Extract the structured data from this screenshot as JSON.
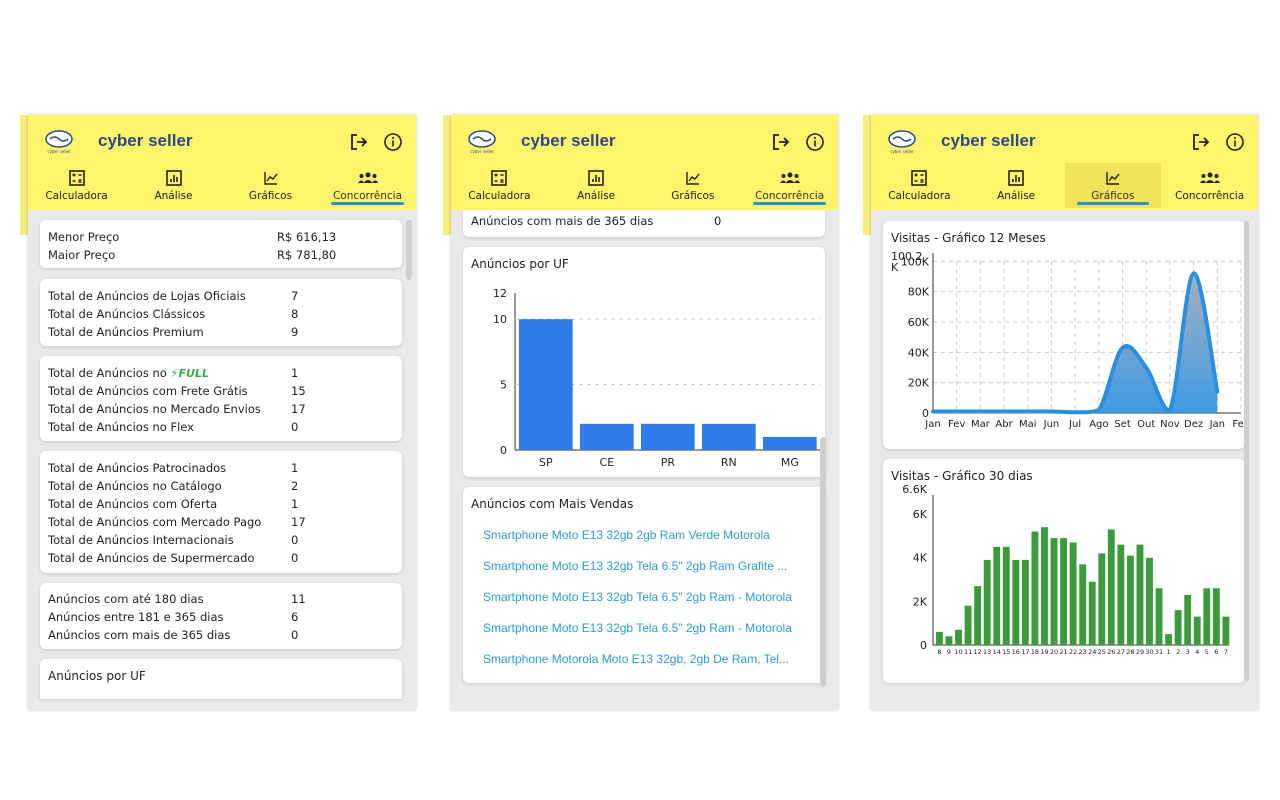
{
  "brand": {
    "name": "cyber seller",
    "logo_text": "cyber seller"
  },
  "tabs": [
    {
      "label": "Calculadora",
      "icon": "calculator-icon"
    },
    {
      "label": "Análise",
      "icon": "analysis-icon"
    },
    {
      "label": "Gráficos",
      "icon": "chart-line-icon"
    },
    {
      "label": "Concorrência",
      "icon": "competitors-icon"
    }
  ],
  "panel1": {
    "prices": [
      {
        "label": "Menor Preço",
        "value": "R$ 616,13"
      },
      {
        "label": "Maior Preço",
        "value": "R$ 781,80"
      }
    ],
    "stores": [
      {
        "label": "Total de Anúncios de Lojas Oficiais",
        "value": "7"
      },
      {
        "label": "Total de Anúncios Clássicos",
        "value": "8"
      },
      {
        "label": "Total de Anúncios Premium",
        "value": "9"
      }
    ],
    "shipping": [
      {
        "label": "Total de Anúncios no",
        "badge": "FULL",
        "value": "1"
      },
      {
        "label": "Total de Anúncios com Frete Grátis",
        "value": "15"
      },
      {
        "label": "Total de Anúncios no Mercado Envios",
        "value": "17"
      },
      {
        "label": "Total de Anúncios no Flex",
        "value": "0"
      }
    ],
    "types": [
      {
        "label": "Total de Anúncios Patrocinados",
        "value": "1"
      },
      {
        "label": "Total de Anúncios no Catálogo",
        "value": "2"
      },
      {
        "label": "Total de Anúncios com Oferta",
        "value": "1"
      },
      {
        "label": "Total de Anúncios com Mercado Pago",
        "value": "17"
      },
      {
        "label": "Total de Anúncios Internacionais",
        "value": "0"
      },
      {
        "label": "Total de Anúncios de Supermercado",
        "value": "0"
      }
    ],
    "age": [
      {
        "label": "Anúncios com até 180 dias",
        "value": "11"
      },
      {
        "label": "Anúncios entre 181 e 365 dias",
        "value": "6"
      },
      {
        "label": "Anúncios com mais de 365 dias",
        "value": "0"
      }
    ],
    "uf_title": "Anúncios por UF"
  },
  "panel2": {
    "top_row": {
      "label": "Anúncios com mais de 365 dias",
      "value": "0"
    },
    "uf_title": "Anúncios por UF",
    "top_sales_title": "Anúncios com Mais Vendas",
    "top_sales": [
      "Smartphone Moto E13 32gb 2gb Ram Verde Motorola",
      "Smartphone Moto E13 32gb Tela 6.5\" 2gb Ram Grafite ...",
      "Smartphone Moto E13 32gb Tela 6.5\" 2gb Ram - Motorola",
      "Smartphone Moto E13 32gb Tela 6.5\" 2gb Ram - Motorola",
      "Smartphone Motorola Moto E13 32gb, 2gb De Ram, Tel..."
    ]
  },
  "panel3": {
    "visits12_title": "Visitas - Gráfico 12 Meses",
    "visits30_title": "Visitas - Gráfico 30 dias"
  },
  "chart_data": [
    {
      "type": "bar",
      "title": "Anúncios por UF",
      "categories": [
        "SP",
        "CE",
        "PR",
        "RN",
        "MG"
      ],
      "values": [
        10,
        2,
        2,
        2,
        1
      ],
      "ylim": [
        0,
        12
      ],
      "yticks": [
        0,
        5,
        10,
        12
      ],
      "color": "#2f7bea"
    },
    {
      "type": "area",
      "title": "Visitas - Gráfico 12 Meses",
      "categories": [
        "Jan",
        "Fev",
        "Mar",
        "Abr",
        "Mai",
        "Jun",
        "Jul",
        "Ago",
        "Set",
        "Out",
        "Nov",
        "Dez",
        "Jan",
        "Fev"
      ],
      "values": [
        1000,
        1000,
        1000,
        1000,
        1000,
        1000,
        500,
        2000,
        43000,
        30000,
        2000,
        92000,
        14000,
        null
      ],
      "ylim": [
        0,
        100200
      ],
      "yticks": [
        "0",
        "20K",
        "40K",
        "60K",
        "80K",
        "100K"
      ],
      "ymax_label": "100.2 K",
      "grid": true,
      "color": "#2a8fe0"
    },
    {
      "type": "bar",
      "title": "Visitas - Gráfico 30 dias",
      "categories": [
        "8",
        "9",
        "10",
        "11",
        "12",
        "13",
        "14",
        "15",
        "16",
        "17",
        "18",
        "19",
        "20",
        "21",
        "22",
        "23",
        "24",
        "25",
        "26",
        "27",
        "28",
        "29",
        "30",
        "31",
        "1",
        "2",
        "3",
        "4",
        "5",
        "6",
        "7"
      ],
      "values": [
        600,
        400,
        700,
        1800,
        2700,
        3900,
        4500,
        4500,
        3900,
        3900,
        5200,
        5400,
        4900,
        4900,
        4700,
        3700,
        2900,
        4200,
        5300,
        4600,
        4100,
        4600,
        4000,
        2600,
        500,
        1600,
        2300,
        1300,
        2600,
        2600,
        1300
      ],
      "ylim": [
        0,
        6600
      ],
      "yticks": [
        "0",
        "2K",
        "4K",
        "6K"
      ],
      "ymax_label": "6.6K",
      "color": "#3b9a3b"
    }
  ]
}
